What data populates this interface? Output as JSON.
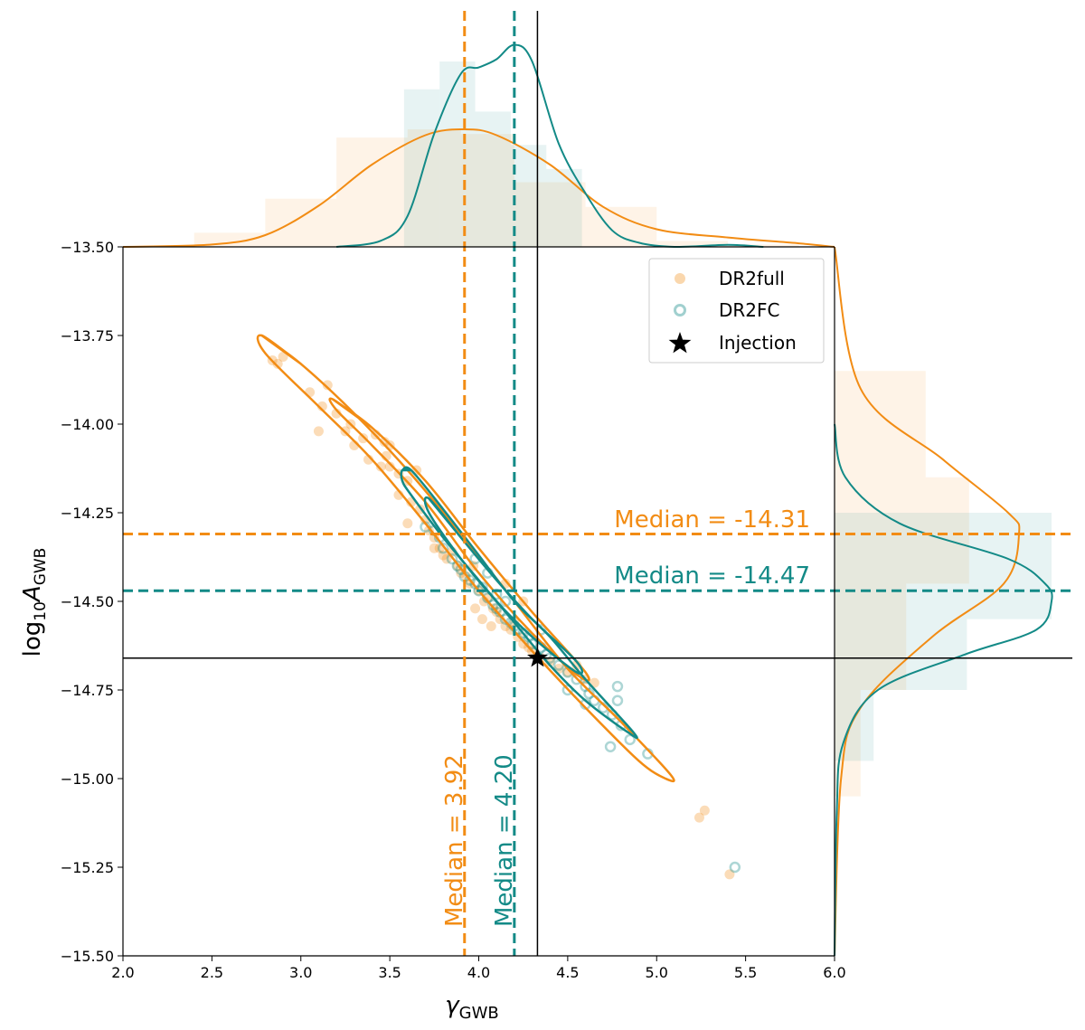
{
  "chart_data": {
    "type": "scatter",
    "title": "",
    "xlabel": "γ",
    "xlabel_sub": "GWB",
    "ylabel_prefix": "log",
    "ylabel_base_sub": "10",
    "ylabel_var": "A",
    "ylabel_sub": "GWB",
    "xlim": [
      2.0,
      6.0
    ],
    "ylim": [
      -15.5,
      -13.5
    ],
    "xticks": [
      2.0,
      2.5,
      3.0,
      3.5,
      4.0,
      4.5,
      5.0,
      5.5,
      6.0
    ],
    "xtick_labels": [
      "2.0",
      "2.5",
      "3.0",
      "3.5",
      "4.0",
      "4.5",
      "5.0",
      "5.5",
      "6.0"
    ],
    "yticks": [
      -13.5,
      -13.75,
      -14.0,
      -14.25,
      -14.5,
      -14.75,
      -15.0,
      -15.25,
      -15.5
    ],
    "ytick_labels": [
      "−13.50",
      "−13.75",
      "−14.00",
      "−14.25",
      "−14.50",
      "−14.75",
      "−15.00",
      "−15.25",
      "−15.50"
    ],
    "colors": {
      "DR2full": "#f28c14",
      "DR2FC": "#138a87",
      "injection": "#000000"
    },
    "legend": {
      "position": "top-right",
      "entries": [
        {
          "label": "DR2full",
          "marker": "filled-circle"
        },
        {
          "label": "DR2FC",
          "marker": "open-circle"
        },
        {
          "label": "Injection",
          "marker": "star"
        }
      ]
    },
    "injection": {
      "x": 4.33,
      "y": -14.66
    },
    "medians": {
      "gamma_DR2full": 3.92,
      "gamma_DR2FC": 4.2,
      "logA_DR2full": -14.31,
      "logA_DR2FC": -14.47
    },
    "median_labels": {
      "gamma_DR2full": "Median = 3.92",
      "gamma_DR2FC": "Median = 4.20",
      "logA_DR2full": "Median = -14.31",
      "logA_DR2FC": "Median = -14.47"
    },
    "series": [
      {
        "name": "DR2full",
        "points": [
          [
            2.84,
            -13.82
          ],
          [
            2.9,
            -13.81
          ],
          [
            2.87,
            -13.83
          ],
          [
            3.05,
            -13.91
          ],
          [
            3.15,
            -13.89
          ],
          [
            3.12,
            -13.95
          ],
          [
            3.1,
            -14.02
          ],
          [
            3.2,
            -13.97
          ],
          [
            3.25,
            -14.02
          ],
          [
            3.3,
            -14.06
          ],
          [
            3.35,
            -14.04
          ],
          [
            3.42,
            -14.03
          ],
          [
            3.47,
            -14.05
          ],
          [
            3.5,
            -14.06
          ],
          [
            3.38,
            -14.1
          ],
          [
            3.45,
            -14.12
          ],
          [
            3.5,
            -14.12
          ],
          [
            3.55,
            -14.14
          ],
          [
            3.6,
            -14.16
          ],
          [
            3.55,
            -14.2
          ],
          [
            3.62,
            -14.22
          ],
          [
            3.67,
            -14.24
          ],
          [
            3.7,
            -14.27
          ],
          [
            3.72,
            -14.3
          ],
          [
            3.75,
            -14.32
          ],
          [
            3.78,
            -14.35
          ],
          [
            3.8,
            -14.37
          ],
          [
            3.82,
            -14.38
          ],
          [
            3.85,
            -14.36
          ],
          [
            3.88,
            -14.4
          ],
          [
            3.9,
            -14.42
          ],
          [
            3.93,
            -14.43
          ],
          [
            3.95,
            -14.45
          ],
          [
            3.97,
            -14.4
          ],
          [
            4.0,
            -14.47
          ],
          [
            4.03,
            -14.5
          ],
          [
            4.05,
            -14.49
          ],
          [
            4.08,
            -14.52
          ],
          [
            4.1,
            -14.53
          ],
          [
            4.12,
            -14.55
          ],
          [
            4.15,
            -14.57
          ],
          [
            4.18,
            -14.58
          ],
          [
            4.2,
            -14.56
          ],
          [
            4.22,
            -14.6
          ],
          [
            4.25,
            -14.62
          ],
          [
            4.28,
            -14.63
          ],
          [
            4.3,
            -14.64
          ],
          [
            4.35,
            -14.66
          ],
          [
            4.4,
            -14.67
          ],
          [
            4.45,
            -14.69
          ],
          [
            4.5,
            -14.7
          ],
          [
            4.55,
            -14.68
          ],
          [
            4.6,
            -14.72
          ],
          [
            4.65,
            -14.73
          ],
          [
            4.02,
            -14.55
          ],
          [
            4.07,
            -14.57
          ],
          [
            3.98,
            -14.52
          ],
          [
            4.15,
            -14.45
          ],
          [
            4.25,
            -14.5
          ],
          [
            3.65,
            -14.13
          ],
          [
            3.48,
            -14.09
          ],
          [
            3.28,
            -14.0
          ],
          [
            3.6,
            -14.28
          ],
          [
            3.75,
            -14.35
          ],
          [
            5.24,
            -15.11
          ],
          [
            5.27,
            -15.09
          ],
          [
            5.41,
            -15.27
          ]
        ]
      },
      {
        "name": "DR2FC",
        "points": [
          [
            3.7,
            -14.29
          ],
          [
            3.75,
            -14.3
          ],
          [
            3.78,
            -14.32
          ],
          [
            3.8,
            -14.35
          ],
          [
            3.85,
            -14.38
          ],
          [
            3.88,
            -14.4
          ],
          [
            3.9,
            -14.41
          ],
          [
            3.92,
            -14.43
          ],
          [
            3.95,
            -14.44
          ],
          [
            3.98,
            -14.45
          ],
          [
            4.0,
            -14.47
          ],
          [
            4.02,
            -14.46
          ],
          [
            4.05,
            -14.49
          ],
          [
            4.08,
            -14.51
          ],
          [
            4.1,
            -14.52
          ],
          [
            4.12,
            -14.53
          ],
          [
            4.15,
            -14.55
          ],
          [
            4.18,
            -14.56
          ],
          [
            4.2,
            -14.57
          ],
          [
            4.22,
            -14.58
          ],
          [
            4.25,
            -14.59
          ],
          [
            4.28,
            -14.6
          ],
          [
            4.3,
            -14.62
          ],
          [
            4.35,
            -14.63
          ],
          [
            4.38,
            -14.65
          ],
          [
            4.4,
            -14.66
          ],
          [
            4.45,
            -14.68
          ],
          [
            4.5,
            -14.7
          ],
          [
            4.55,
            -14.72
          ],
          [
            4.6,
            -14.74
          ],
          [
            4.62,
            -14.76
          ],
          [
            4.65,
            -14.78
          ],
          [
            4.7,
            -14.8
          ],
          [
            4.75,
            -14.82
          ],
          [
            4.8,
            -14.85
          ],
          [
            4.6,
            -14.79
          ],
          [
            4.78,
            -14.74
          ],
          [
            4.78,
            -14.78
          ],
          [
            4.85,
            -14.89
          ],
          [
            4.74,
            -14.91
          ],
          [
            4.95,
            -14.93
          ],
          [
            5.44,
            -15.25
          ],
          [
            4.05,
            -14.42
          ],
          [
            3.98,
            -14.38
          ],
          [
            4.15,
            -14.5
          ],
          [
            4.35,
            -14.58
          ],
          [
            4.1,
            -14.48
          ],
          [
            4.5,
            -14.75
          ]
        ]
      }
    ],
    "contours": [
      {
        "series": "DR2full",
        "level": "outer",
        "path": [
          [
            2.78,
            -13.75
          ],
          [
            3.0,
            -13.83
          ],
          [
            3.3,
            -13.97
          ],
          [
            3.6,
            -14.13
          ],
          [
            3.9,
            -14.31
          ],
          [
            4.2,
            -14.5
          ],
          [
            4.5,
            -14.69
          ],
          [
            4.8,
            -14.84
          ],
          [
            5.08,
            -14.99
          ],
          [
            5.05,
            -15.0
          ],
          [
            4.9,
            -14.95
          ],
          [
            4.6,
            -14.8
          ],
          [
            4.3,
            -14.64
          ],
          [
            4.0,
            -14.47
          ],
          [
            3.7,
            -14.28
          ],
          [
            3.4,
            -14.1
          ],
          [
            3.1,
            -13.95
          ],
          [
            2.8,
            -13.8
          ]
        ]
      },
      {
        "series": "DR2full",
        "level": "inner",
        "path": [
          [
            3.18,
            -13.93
          ],
          [
            3.4,
            -14.01
          ],
          [
            3.7,
            -14.16
          ],
          [
            4.0,
            -14.35
          ],
          [
            4.3,
            -14.53
          ],
          [
            4.6,
            -14.7
          ],
          [
            4.56,
            -14.71
          ],
          [
            4.3,
            -14.59
          ],
          [
            4.0,
            -14.42
          ],
          [
            3.7,
            -14.22
          ],
          [
            3.4,
            -14.06
          ],
          [
            3.2,
            -13.96
          ]
        ]
      },
      {
        "series": "DR2FC",
        "level": "outer",
        "path": [
          [
            3.57,
            -14.13
          ],
          [
            3.62,
            -14.13
          ],
          [
            3.8,
            -14.24
          ],
          [
            4.0,
            -14.37
          ],
          [
            4.2,
            -14.5
          ],
          [
            4.4,
            -14.6
          ],
          [
            4.6,
            -14.72
          ],
          [
            4.87,
            -14.87
          ],
          [
            4.84,
            -14.87
          ],
          [
            4.6,
            -14.78
          ],
          [
            4.4,
            -14.68
          ],
          [
            4.2,
            -14.56
          ],
          [
            4.0,
            -14.44
          ],
          [
            3.8,
            -14.32
          ],
          [
            3.62,
            -14.2
          ],
          [
            3.57,
            -14.16
          ]
        ]
      },
      {
        "series": "DR2FC",
        "level": "inner",
        "path": [
          [
            3.72,
            -14.21
          ],
          [
            3.9,
            -14.32
          ],
          [
            4.1,
            -14.44
          ],
          [
            4.3,
            -14.55
          ],
          [
            4.55,
            -14.67
          ],
          [
            4.55,
            -14.7
          ],
          [
            4.3,
            -14.6
          ],
          [
            4.1,
            -14.5
          ],
          [
            3.9,
            -14.38
          ],
          [
            3.72,
            -14.25
          ]
        ]
      }
    ],
    "marginal_x": {
      "bin_edges": [
        2.4,
        2.8,
        3.2,
        3.6,
        3.9,
        4.2,
        4.6,
        5.0,
        5.4,
        5.8
      ],
      "hist_DR2full": [
        0.12,
        0.41,
        0.93,
        1.0,
        0.96,
        0.55,
        0.34,
        0.05,
        0.02
      ],
      "bin_edges_DR2FC": [
        3.58,
        3.78,
        3.98,
        4.18,
        4.38,
        4.58,
        4.78
      ],
      "hist_DR2FC": [
        0.85,
        1.0,
        0.73,
        0.55,
        0.42,
        0.0
      ],
      "kde_DR2full": [
        [
          2.0,
          0.0
        ],
        [
          2.5,
          0.02
        ],
        [
          2.8,
          0.1
        ],
        [
          3.1,
          0.35
        ],
        [
          3.4,
          0.7
        ],
        [
          3.7,
          0.95
        ],
        [
          3.92,
          1.0
        ],
        [
          4.1,
          0.95
        ],
        [
          4.4,
          0.7
        ],
        [
          4.7,
          0.34
        ],
        [
          5.0,
          0.15
        ],
        [
          5.4,
          0.08
        ],
        [
          5.8,
          0.03
        ],
        [
          6.0,
          0.0
        ]
      ],
      "kde_DR2FC": [
        [
          3.2,
          0.0
        ],
        [
          3.45,
          0.03
        ],
        [
          3.6,
          0.15
        ],
        [
          3.75,
          0.55
        ],
        [
          3.9,
          0.84
        ],
        [
          4.0,
          0.87
        ],
        [
          4.1,
          0.91
        ],
        [
          4.2,
          0.98
        ],
        [
          4.3,
          0.9
        ],
        [
          4.45,
          0.5
        ],
        [
          4.6,
          0.26
        ],
        [
          4.75,
          0.08
        ],
        [
          4.9,
          0.02
        ],
        [
          5.1,
          0.0
        ],
        [
          5.4,
          0.01
        ],
        [
          5.6,
          0.0
        ]
      ]
    },
    "marginal_y": {
      "kde_DR2full": [
        [
          -13.5,
          0.0
        ],
        [
          -13.9,
          0.12
        ],
        [
          -14.1,
          0.5
        ],
        [
          -14.25,
          0.8
        ],
        [
          -14.31,
          0.85
        ],
        [
          -14.45,
          0.78
        ],
        [
          -14.6,
          0.45
        ],
        [
          -14.8,
          0.12
        ],
        [
          -15.0,
          0.03
        ],
        [
          -15.5,
          0.0
        ]
      ],
      "kde_DR2FC": [
        [
          -14.0,
          0.0
        ],
        [
          -14.15,
          0.05
        ],
        [
          -14.28,
          0.3
        ],
        [
          -14.38,
          0.8
        ],
        [
          -14.45,
          0.97
        ],
        [
          -14.5,
          1.0
        ],
        [
          -14.58,
          0.93
        ],
        [
          -14.65,
          0.6
        ],
        [
          -14.75,
          0.2
        ],
        [
          -14.9,
          0.04
        ],
        [
          -15.1,
          0.01
        ],
        [
          -15.5,
          0.0
        ]
      ],
      "hist_DR2full": [
        [
          -13.85,
          -14.15,
          0.42
        ],
        [
          -14.15,
          -14.45,
          0.62
        ],
        [
          -14.45,
          -14.75,
          0.33
        ],
        [
          -14.75,
          -15.05,
          0.12
        ]
      ],
      "hist_DR2FC": [
        [
          -14.25,
          -14.55,
          1.0
        ],
        [
          -14.55,
          -14.75,
          0.61
        ],
        [
          -14.75,
          -14.95,
          0.18
        ]
      ]
    }
  }
}
